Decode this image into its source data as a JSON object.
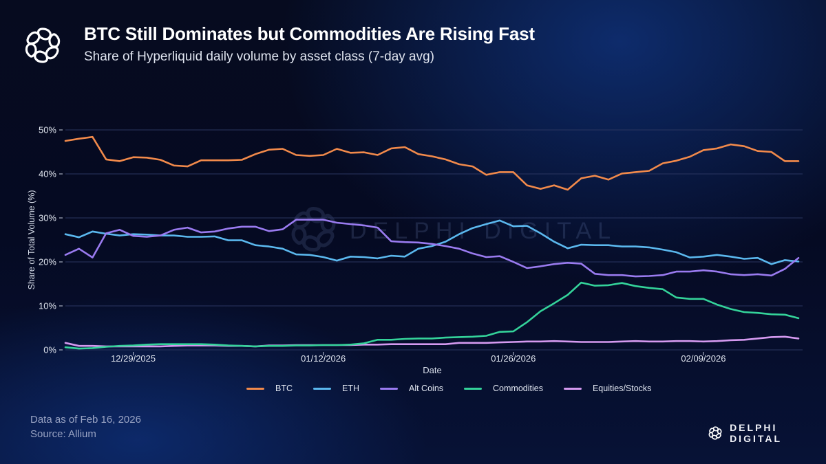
{
  "header": {
    "title": "BTC Still Dominates but Commodities Are Rising Fast",
    "subtitle": "Share of Hyperliquid daily volume by asset class (7-day avg)",
    "logo_icon": "delphi-knot-icon"
  },
  "footer": {
    "data_as_of": "Data as of Feb 16, 2026",
    "source": "Source: Allium",
    "brand": "DELPHI DIGITAL"
  },
  "watermark": "DELPHI DIGITAL",
  "chart_data": {
    "type": "line",
    "title": "BTC Still Dominates but Commodities Are Rising Fast",
    "subtitle": "Share of Hyperliquid daily volume by asset class (7-day avg)",
    "xlabel": "Date",
    "ylabel": "Share of Total Volume (%)",
    "ylim": [
      0,
      50
    ],
    "yticks": [
      0,
      10,
      20,
      30,
      40,
      50
    ],
    "ytick_labels": [
      "0%",
      "10%",
      "20%",
      "30%",
      "40%",
      "50%"
    ],
    "x_start": "12/24/2025",
    "x_end": "02/16/2026",
    "num_points": 55,
    "xticks": [
      {
        "index": 5,
        "label": "12/29/2025"
      },
      {
        "index": 19,
        "label": "01/12/2026"
      },
      {
        "index": 33,
        "label": "01/26/2026"
      },
      {
        "index": 47,
        "label": "02/09/2026"
      }
    ],
    "grid": true,
    "legend_position": "bottom",
    "series": [
      {
        "name": "BTC",
        "color": "#f28a4b",
        "values": [
          47.5,
          48.0,
          48.4,
          43.3,
          42.9,
          43.8,
          43.7,
          43.2,
          41.9,
          41.7,
          43.1,
          43.1,
          43.1,
          43.2,
          44.5,
          45.5,
          45.7,
          44.3,
          44.1,
          44.3,
          45.7,
          44.8,
          44.9,
          44.3,
          45.8,
          46.1,
          44.5,
          44.0,
          43.3,
          42.2,
          41.7,
          39.8,
          40.4,
          40.4,
          37.4,
          36.6,
          37.4,
          36.4,
          39.0,
          39.6,
          38.7,
          40.1,
          40.4,
          40.7,
          42.4,
          43.0,
          43.9,
          45.4,
          45.8,
          46.7,
          46.3,
          45.2,
          45.0,
          42.9,
          42.9
        ]
      },
      {
        "name": "ETH",
        "color": "#5bb8ee",
        "values": [
          26.3,
          25.6,
          26.9,
          26.4,
          26.0,
          26.3,
          26.2,
          26.0,
          26.0,
          25.7,
          25.7,
          25.8,
          24.9,
          24.9,
          23.8,
          23.5,
          23.0,
          21.7,
          21.6,
          21.1,
          20.3,
          21.2,
          21.1,
          20.8,
          21.4,
          21.2,
          23.0,
          23.6,
          24.6,
          26.3,
          27.7,
          28.6,
          29.4,
          28.1,
          28.2,
          26.5,
          24.6,
          23.1,
          23.9,
          23.8,
          23.8,
          23.5,
          23.5,
          23.3,
          22.8,
          22.2,
          21.0,
          21.2,
          21.6,
          21.2,
          20.7,
          20.9,
          19.5,
          20.4,
          20.1
        ]
      },
      {
        "name": "Alt Coins",
        "color": "#9a7bf0",
        "values": [
          21.6,
          23.0,
          21.0,
          26.5,
          27.3,
          25.9,
          25.7,
          26.0,
          27.3,
          27.8,
          26.7,
          26.9,
          27.6,
          28.0,
          28.0,
          27.0,
          27.4,
          29.6,
          29.6,
          29.6,
          28.9,
          28.6,
          28.3,
          27.8,
          24.7,
          24.5,
          24.4,
          24.1,
          23.6,
          23.0,
          21.9,
          21.1,
          21.3,
          20.0,
          18.6,
          19.0,
          19.5,
          19.8,
          19.6,
          17.3,
          17.0,
          17.0,
          16.7,
          16.8,
          17.0,
          17.8,
          17.8,
          18.1,
          17.8,
          17.2,
          17.0,
          17.2,
          16.9,
          18.4,
          20.9
        ]
      },
      {
        "name": "Commodities",
        "color": "#34d39a",
        "values": [
          0.6,
          0.3,
          0.4,
          0.7,
          0.9,
          1.0,
          1.2,
          1.3,
          1.3,
          1.3,
          1.3,
          1.2,
          1.0,
          0.9,
          0.8,
          0.9,
          0.9,
          1.0,
          1.0,
          1.1,
          1.1,
          1.2,
          1.5,
          2.3,
          2.3,
          2.5,
          2.6,
          2.6,
          2.8,
          2.9,
          3.0,
          3.2,
          4.1,
          4.2,
          6.3,
          8.8,
          10.6,
          12.5,
          15.3,
          14.6,
          14.7,
          15.2,
          14.5,
          14.1,
          13.8,
          11.9,
          11.6,
          11.6,
          10.3,
          9.3,
          8.6,
          8.4,
          8.1,
          8.0,
          7.2
        ]
      },
      {
        "name": "Equities/Stocks",
        "color": "#d59af0",
        "values": [
          1.6,
          0.9,
          0.9,
          0.8,
          0.8,
          0.8,
          0.8,
          0.8,
          0.9,
          1.0,
          1.0,
          1.0,
          0.9,
          0.9,
          0.8,
          1.0,
          1.0,
          1.1,
          1.1,
          1.1,
          1.1,
          1.1,
          1.2,
          1.2,
          1.3,
          1.3,
          1.3,
          1.3,
          1.3,
          1.6,
          1.6,
          1.6,
          1.7,
          1.8,
          1.9,
          1.9,
          2.0,
          1.9,
          1.8,
          1.8,
          1.8,
          1.9,
          2.0,
          1.9,
          1.9,
          2.0,
          2.0,
          1.9,
          2.0,
          2.2,
          2.3,
          2.6,
          2.9,
          3.0,
          2.6
        ]
      }
    ]
  }
}
